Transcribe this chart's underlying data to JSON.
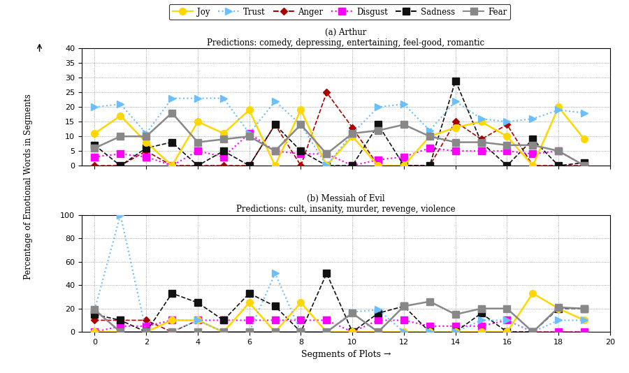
{
  "title_a": "(a) Arthur",
  "subtitle_a": "Predictions: comedy, depressing, entertaining, feel-good, romantic",
  "title_b": "(b) Messiah of Evil",
  "subtitle_b": "Predictions: cult, insanity, murder, revenge, violence",
  "xlabel": "Segments of Plots →",
  "ylabel": "Percentage of Emotional Words in Segments",
  "x": [
    0,
    1,
    2,
    3,
    4,
    5,
    6,
    7,
    8,
    9,
    10,
    11,
    12,
    13,
    14,
    15,
    16,
    17,
    18,
    19
  ],
  "joy_a": [
    11,
    17,
    8,
    0,
    15,
    11,
    19,
    0,
    19,
    0,
    10,
    0,
    0,
    10,
    13,
    15,
    10,
    0,
    20,
    9
  ],
  "trust_a": [
    20,
    21,
    11,
    23,
    23,
    23,
    11,
    22,
    14,
    0,
    11,
    20,
    21,
    12,
    22,
    16,
    15,
    16,
    19,
    18
  ],
  "anger_a": [
    0,
    0,
    5,
    0,
    0,
    0,
    0,
    14,
    0,
    25,
    13,
    0,
    0,
    0,
    15,
    9,
    14,
    0,
    0,
    0
  ],
  "disgust_a": [
    3,
    4,
    3,
    0,
    5,
    3,
    11,
    5,
    4,
    4,
    0,
    2,
    3,
    6,
    5,
    5,
    5,
    4,
    5,
    0
  ],
  "sadness_a": [
    7,
    0,
    6,
    8,
    0,
    5,
    0,
    14,
    5,
    0,
    0,
    14,
    0,
    0,
    29,
    8,
    0,
    9,
    0,
    1
  ],
  "fear_a": [
    6,
    10,
    10,
    18,
    8,
    9,
    10,
    5,
    14,
    4,
    11,
    12,
    14,
    10,
    8,
    8,
    7,
    7,
    5,
    0
  ],
  "joy_b": [
    0,
    0,
    0,
    10,
    10,
    0,
    25,
    0,
    25,
    0,
    0,
    0,
    0,
    0,
    0,
    0,
    0,
    33,
    20,
    10
  ],
  "trust_b": [
    19,
    100,
    0,
    0,
    10,
    0,
    0,
    50,
    0,
    0,
    17,
    19,
    0,
    0,
    0,
    10,
    10,
    0,
    10,
    10
  ],
  "anger_b": [
    10,
    10,
    10,
    0,
    10,
    0,
    0,
    0,
    0,
    0,
    0,
    0,
    0,
    0,
    0,
    0,
    0,
    0,
    0,
    0
  ],
  "disgust_b": [
    0,
    5,
    5,
    10,
    10,
    10,
    10,
    10,
    10,
    10,
    0,
    10,
    10,
    5,
    5,
    5,
    10,
    0,
    0,
    0
  ],
  "sadness_b": [
    15,
    10,
    0,
    33,
    25,
    10,
    33,
    22,
    0,
    50,
    0,
    16,
    22,
    0,
    0,
    16,
    0,
    0,
    20,
    20
  ],
  "fear_b": [
    19,
    0,
    0,
    0,
    0,
    0,
    0,
    0,
    0,
    0,
    16,
    0,
    22,
    26,
    15,
    20,
    20,
    0,
    21,
    20
  ],
  "joy_color": "#FFD700",
  "trust_color": "#6BBFFF",
  "anger_color": "#AA0000",
  "disgust_color": "#FF00FF",
  "sadness_color": "#111111",
  "fear_color": "#888888",
  "legend_joy_color": "#FFD700",
  "legend_trust_color": "#6BBFFF",
  "legend_anger_color": "#AA0000",
  "legend_disgust_color": "#FF00FF",
  "legend_sadness_color": "#111111",
  "legend_fear_color": "#888888"
}
